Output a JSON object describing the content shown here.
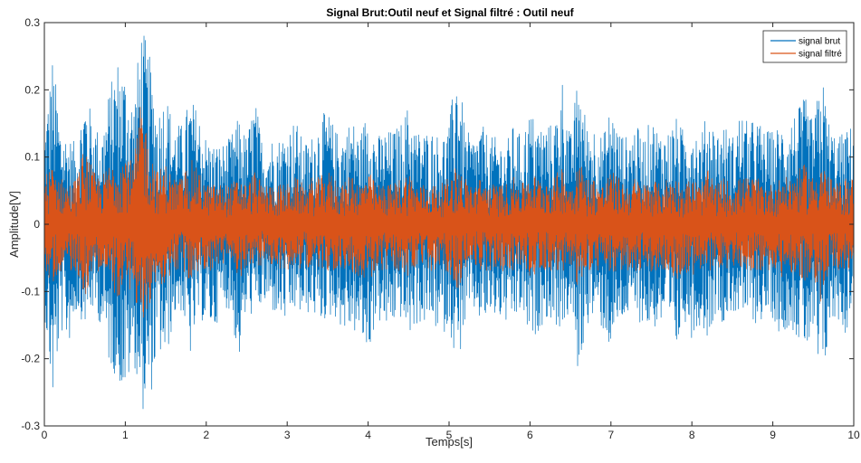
{
  "chart_data": {
    "type": "line",
    "title": "Signal Brut:Outil neuf et Signal filtré : Outil neuf",
    "xlabel": "Temps[s]",
    "ylabel": "Amplitude[V]",
    "xlim": [
      0,
      10
    ],
    "ylim": [
      -0.3,
      0.3
    ],
    "xticks": [
      0,
      1,
      2,
      3,
      4,
      5,
      6,
      7,
      8,
      9,
      10
    ],
    "yticks": [
      -0.3,
      -0.2,
      -0.1,
      0,
      0.1,
      0.2,
      0.3
    ],
    "ytick_labels": [
      "-0.3",
      "-0.2",
      "-0.1",
      "0",
      "0.1",
      "0.2",
      "0.3"
    ],
    "grid": false,
    "legend_position": "top-right",
    "series": [
      {
        "name": "signal brut",
        "color": "#0072BD",
        "x": [
          0.0,
          0.1,
          0.2,
          0.3,
          0.4,
          0.5,
          0.6,
          0.7,
          0.8,
          0.9,
          1.0,
          1.1,
          1.2,
          1.3,
          1.4,
          1.5,
          1.6,
          1.7,
          1.8,
          1.9,
          2.0,
          2.1,
          2.2,
          2.3,
          2.4,
          2.5,
          2.6,
          2.7,
          2.8,
          2.9,
          3.0,
          3.1,
          3.2,
          3.3,
          3.4,
          3.5,
          3.6,
          3.7,
          3.8,
          3.9,
          4.0,
          4.1,
          4.2,
          4.3,
          4.4,
          4.5,
          4.6,
          4.7,
          4.8,
          4.9,
          5.0,
          5.1,
          5.2,
          5.3,
          5.4,
          5.5,
          5.6,
          5.7,
          5.8,
          5.9,
          6.0,
          6.1,
          6.2,
          6.3,
          6.4,
          6.5,
          6.6,
          6.7,
          6.8,
          6.9,
          7.0,
          7.1,
          7.2,
          7.3,
          7.4,
          7.5,
          7.6,
          7.7,
          7.8,
          7.9,
          8.0,
          8.1,
          8.2,
          8.3,
          8.4,
          8.5,
          8.6,
          8.7,
          8.8,
          8.9,
          9.0,
          9.1,
          9.2,
          9.3,
          9.4,
          9.5,
          9.6,
          9.7,
          9.8,
          9.9,
          10.0
        ],
        "upper": [
          0.14,
          0.25,
          0.15,
          0.13,
          0.12,
          0.2,
          0.16,
          0.13,
          0.2,
          0.25,
          0.23,
          0.18,
          0.3,
          0.25,
          0.17,
          0.2,
          0.15,
          0.15,
          0.19,
          0.17,
          0.13,
          0.12,
          0.12,
          0.13,
          0.16,
          0.13,
          0.19,
          0.12,
          0.13,
          0.13,
          0.14,
          0.16,
          0.12,
          0.13,
          0.16,
          0.17,
          0.14,
          0.14,
          0.16,
          0.13,
          0.18,
          0.13,
          0.14,
          0.14,
          0.15,
          0.18,
          0.14,
          0.14,
          0.14,
          0.13,
          0.15,
          0.25,
          0.14,
          0.13,
          0.15,
          0.13,
          0.13,
          0.12,
          0.15,
          0.13,
          0.17,
          0.15,
          0.15,
          0.15,
          0.22,
          0.13,
          0.23,
          0.15,
          0.15,
          0.13,
          0.18,
          0.14,
          0.13,
          0.15,
          0.13,
          0.16,
          0.14,
          0.14,
          0.16,
          0.14,
          0.16,
          0.13,
          0.17,
          0.14,
          0.15,
          0.13,
          0.17,
          0.15,
          0.16,
          0.14,
          0.14,
          0.15,
          0.16,
          0.17,
          0.19,
          0.15,
          0.23,
          0.15,
          0.13,
          0.14,
          0.15
        ],
        "lower": [
          -0.13,
          -0.27,
          -0.16,
          -0.18,
          -0.13,
          -0.15,
          -0.13,
          -0.15,
          -0.21,
          -0.23,
          -0.26,
          -0.2,
          -0.28,
          -0.27,
          -0.19,
          -0.21,
          -0.14,
          -0.13,
          -0.2,
          -0.14,
          -0.15,
          -0.16,
          -0.12,
          -0.13,
          -0.21,
          -0.13,
          -0.14,
          -0.12,
          -0.13,
          -0.14,
          -0.15,
          -0.13,
          -0.14,
          -0.13,
          -0.15,
          -0.14,
          -0.14,
          -0.16,
          -0.16,
          -0.17,
          -0.2,
          -0.14,
          -0.16,
          -0.15,
          -0.14,
          -0.17,
          -0.15,
          -0.15,
          -0.15,
          -0.17,
          -0.15,
          -0.22,
          -0.15,
          -0.13,
          -0.15,
          -0.14,
          -0.14,
          -0.15,
          -0.15,
          -0.13,
          -0.18,
          -0.16,
          -0.14,
          -0.15,
          -0.16,
          -0.13,
          -0.23,
          -0.15,
          -0.14,
          -0.16,
          -0.19,
          -0.15,
          -0.14,
          -0.14,
          -0.15,
          -0.16,
          -0.15,
          -0.16,
          -0.2,
          -0.14,
          -0.17,
          -0.15,
          -0.17,
          -0.13,
          -0.15,
          -0.13,
          -0.14,
          -0.14,
          -0.15,
          -0.14,
          -0.14,
          -0.17,
          -0.15,
          -0.17,
          -0.19,
          -0.18,
          -0.26,
          -0.16,
          -0.14,
          -0.17,
          -0.1
        ]
      },
      {
        "name": "signal filtré",
        "color": "#D95319",
        "x": [
          0.0,
          0.1,
          0.2,
          0.3,
          0.4,
          0.5,
          0.6,
          0.7,
          0.8,
          0.9,
          1.0,
          1.1,
          1.2,
          1.3,
          1.4,
          1.5,
          1.6,
          1.7,
          1.8,
          1.9,
          2.0,
          2.1,
          2.2,
          2.3,
          2.4,
          2.5,
          2.6,
          2.7,
          2.8,
          2.9,
          3.0,
          3.1,
          3.2,
          3.3,
          3.4,
          3.5,
          3.6,
          3.7,
          3.8,
          3.9,
          4.0,
          4.1,
          4.2,
          4.3,
          4.4,
          4.5,
          4.6,
          4.7,
          4.8,
          4.9,
          5.0,
          5.1,
          5.2,
          5.3,
          5.4,
          5.5,
          5.6,
          5.7,
          5.8,
          5.9,
          6.0,
          6.1,
          6.2,
          6.3,
          6.4,
          6.5,
          6.6,
          6.7,
          6.8,
          6.9,
          7.0,
          7.1,
          7.2,
          7.3,
          7.4,
          7.5,
          7.6,
          7.7,
          7.8,
          7.9,
          8.0,
          8.1,
          8.2,
          8.3,
          8.4,
          8.5,
          8.6,
          8.7,
          8.8,
          8.9,
          9.0,
          9.1,
          9.2,
          9.3,
          9.4,
          9.5,
          9.6,
          9.7,
          9.8,
          9.9,
          10.0
        ],
        "upper": [
          0.07,
          0.09,
          0.07,
          0.06,
          0.07,
          0.12,
          0.08,
          0.07,
          0.09,
          0.1,
          0.11,
          0.09,
          0.19,
          0.12,
          0.08,
          0.09,
          0.07,
          0.07,
          0.1,
          0.08,
          0.06,
          0.06,
          0.06,
          0.06,
          0.07,
          0.06,
          0.08,
          0.06,
          0.06,
          0.06,
          0.06,
          0.07,
          0.06,
          0.07,
          0.07,
          0.08,
          0.07,
          0.06,
          0.08,
          0.06,
          0.08,
          0.06,
          0.06,
          0.06,
          0.07,
          0.08,
          0.06,
          0.06,
          0.06,
          0.06,
          0.07,
          0.09,
          0.07,
          0.06,
          0.07,
          0.06,
          0.06,
          0.06,
          0.07,
          0.06,
          0.08,
          0.07,
          0.07,
          0.07,
          0.09,
          0.06,
          0.1,
          0.07,
          0.07,
          0.06,
          0.08,
          0.07,
          0.06,
          0.07,
          0.06,
          0.07,
          0.06,
          0.07,
          0.07,
          0.06,
          0.07,
          0.06,
          0.08,
          0.06,
          0.07,
          0.06,
          0.07,
          0.07,
          0.07,
          0.06,
          0.06,
          0.07,
          0.07,
          0.08,
          0.09,
          0.07,
          0.1,
          0.07,
          0.06,
          0.07,
          0.07
        ],
        "lower": [
          -0.07,
          -0.09,
          -0.07,
          -0.07,
          -0.07,
          -0.11,
          -0.07,
          -0.07,
          -0.09,
          -0.11,
          -0.11,
          -0.09,
          -0.18,
          -0.12,
          -0.09,
          -0.09,
          -0.07,
          -0.07,
          -0.09,
          -0.07,
          -0.07,
          -0.07,
          -0.06,
          -0.06,
          -0.09,
          -0.06,
          -0.07,
          -0.06,
          -0.06,
          -0.07,
          -0.07,
          -0.06,
          -0.07,
          -0.06,
          -0.07,
          -0.07,
          -0.07,
          -0.07,
          -0.07,
          -0.08,
          -0.09,
          -0.07,
          -0.07,
          -0.07,
          -0.07,
          -0.08,
          -0.07,
          -0.07,
          -0.07,
          -0.08,
          -0.07,
          -0.1,
          -0.07,
          -0.06,
          -0.07,
          -0.07,
          -0.07,
          -0.07,
          -0.07,
          -0.06,
          -0.08,
          -0.07,
          -0.07,
          -0.07,
          -0.07,
          -0.06,
          -0.11,
          -0.07,
          -0.07,
          -0.07,
          -0.08,
          -0.07,
          -0.07,
          -0.07,
          -0.07,
          -0.07,
          -0.07,
          -0.07,
          -0.09,
          -0.07,
          -0.08,
          -0.07,
          -0.08,
          -0.06,
          -0.07,
          -0.06,
          -0.07,
          -0.07,
          -0.07,
          -0.07,
          -0.07,
          -0.08,
          -0.07,
          -0.08,
          -0.09,
          -0.08,
          -0.12,
          -0.07,
          -0.07,
          -0.08,
          -0.06
        ]
      }
    ]
  }
}
